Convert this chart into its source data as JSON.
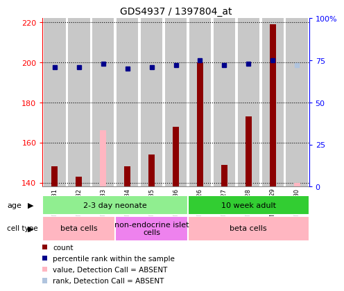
{
  "title": "GDS4937 / 1397804_at",
  "samples": [
    "GSM1146031",
    "GSM1146032",
    "GSM1146033",
    "GSM1146034",
    "GSM1146035",
    "GSM1146036",
    "GSM1146026",
    "GSM1146027",
    "GSM1146028",
    "GSM1146029",
    "GSM1146030"
  ],
  "count_values": [
    148,
    143,
    166,
    148,
    154,
    168,
    200,
    149,
    173,
    219,
    140
  ],
  "count_absent": [
    false,
    false,
    true,
    false,
    false,
    false,
    false,
    false,
    false,
    false,
    true
  ],
  "rank_values": [
    71,
    71,
    73,
    70,
    71,
    72,
    75,
    72,
    73,
    75,
    72
  ],
  "rank_absent": [
    false,
    false,
    false,
    false,
    false,
    false,
    false,
    false,
    false,
    false,
    true
  ],
  "ylim_left": [
    138,
    222
  ],
  "ylim_right": [
    0,
    100
  ],
  "yticks_left": [
    140,
    160,
    180,
    200,
    220
  ],
  "yticks_right": [
    0,
    25,
    50,
    75,
    100
  ],
  "ytick_labels_right": [
    "0",
    "25",
    "50",
    "75",
    "100%"
  ],
  "age_groups": [
    {
      "label": "2-3 day neonate",
      "start": 0,
      "end": 6,
      "color": "#90EE90"
    },
    {
      "label": "10 week adult",
      "start": 6,
      "end": 11,
      "color": "#32CD32"
    }
  ],
  "cell_type_groups": [
    {
      "label": "beta cells",
      "start": 0,
      "end": 3,
      "color": "#FFB6C1"
    },
    {
      "label": "non-endocrine islet\ncells",
      "start": 3,
      "end": 6,
      "color": "#EE82EE"
    },
    {
      "label": "beta cells",
      "start": 6,
      "end": 11,
      "color": "#FFB6C1"
    }
  ],
  "bar_color": "#8B0000",
  "bar_absent_color": "#FFB6C1",
  "dot_color": "#00008B",
  "dot_absent_color": "#B0C4DE",
  "col_bg_color": "#C8C8C8",
  "plot_bg": "#FFFFFF",
  "grid_color": "#000000"
}
